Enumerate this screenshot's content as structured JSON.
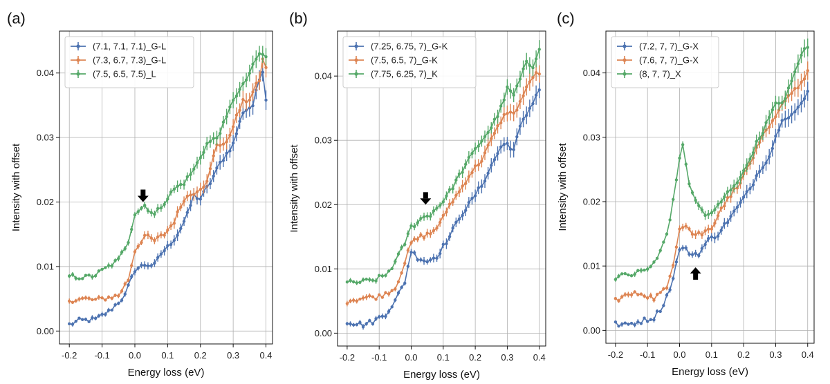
{
  "colors": {
    "blue": "#4c72b0",
    "orange": "#dd8452",
    "green": "#55a868"
  },
  "chart_data": [
    {
      "type": "line",
      "panel_label": "(a)",
      "xlabel": "Energy loss (eV)",
      "ylabel": "Intensity with offset",
      "xlim": [
        -0.23,
        0.42
      ],
      "ylim": [
        -0.002,
        0.0465
      ],
      "xticks": [
        -0.2,
        -0.1,
        0.0,
        0.1,
        0.2,
        0.3,
        0.4
      ],
      "xtick_labels": [
        "-0.2",
        "-0.1",
        "0.0",
        "0.1",
        "0.2",
        "0.3",
        "0.4"
      ],
      "yticks": [
        0.0,
        0.01,
        0.02,
        0.03,
        0.04
      ],
      "ytick_labels": [
        "0.00",
        "0.01",
        "0.02",
        "0.03",
        "0.04"
      ],
      "grid": true,
      "legend_position": "top-left",
      "arrow": {
        "x": 0.025,
        "y": 0.0215,
        "direction": "down"
      },
      "series": [
        {
          "name": "(7.1, 7.1, 7.1)_G-L",
          "color": "#4c72b0",
          "anchors": [
            [
              -0.2,
              0.001
            ],
            [
              -0.17,
              0.0016
            ],
            [
              -0.12,
              0.0018
            ],
            [
              -0.08,
              0.003
            ],
            [
              -0.05,
              0.0045
            ],
            [
              -0.03,
              0.0055
            ],
            [
              0.0,
              0.0095
            ],
            [
              0.03,
              0.0103
            ],
            [
              0.06,
              0.0102
            ],
            [
              0.08,
              0.012
            ],
            [
              0.1,
              0.013
            ],
            [
              0.13,
              0.015
            ],
            [
              0.16,
              0.018
            ],
            [
              0.18,
              0.021
            ],
            [
              0.2,
              0.0205
            ],
            [
              0.23,
              0.023
            ],
            [
              0.26,
              0.026
            ],
            [
              0.3,
              0.029
            ],
            [
              0.33,
              0.034
            ],
            [
              0.36,
              0.035
            ],
            [
              0.38,
              0.039
            ],
            [
              0.39,
              0.0405
            ],
            [
              0.4,
              0.036
            ]
          ]
        },
        {
          "name": "(7.3, 6.7, 7.3)_G-L",
          "color": "#dd8452",
          "anchors": [
            [
              -0.2,
              0.0048
            ],
            [
              -0.15,
              0.005
            ],
            [
              -0.12,
              0.0048
            ],
            [
              -0.08,
              0.0052
            ],
            [
              -0.05,
              0.0055
            ],
            [
              -0.02,
              0.008
            ],
            [
              0.0,
              0.0125
            ],
            [
              0.03,
              0.0148
            ],
            [
              0.06,
              0.014
            ],
            [
              0.09,
              0.015
            ],
            [
              0.12,
              0.017
            ],
            [
              0.15,
              0.0205
            ],
            [
              0.18,
              0.0215
            ],
            [
              0.22,
              0.023
            ],
            [
              0.25,
              0.029
            ],
            [
              0.28,
              0.029
            ],
            [
              0.3,
              0.032
            ],
            [
              0.33,
              0.0355
            ],
            [
              0.35,
              0.036
            ],
            [
              0.38,
              0.039
            ],
            [
              0.39,
              0.042
            ],
            [
              0.4,
              0.041
            ]
          ]
        },
        {
          "name": "(7.5, 6.5, 7.5)_L",
          "color": "#55a868",
          "anchors": [
            [
              -0.2,
              0.0085
            ],
            [
              -0.15,
              0.0083
            ],
            [
              -0.12,
              0.0087
            ],
            [
              -0.08,
              0.01
            ],
            [
              -0.05,
              0.011
            ],
            [
              -0.02,
              0.014
            ],
            [
              0.0,
              0.0182
            ],
            [
              0.03,
              0.0195
            ],
            [
              0.06,
              0.018
            ],
            [
              0.09,
              0.02
            ],
            [
              0.12,
              0.022
            ],
            [
              0.15,
              0.023
            ],
            [
              0.18,
              0.025
            ],
            [
              0.22,
              0.029
            ],
            [
              0.25,
              0.03
            ],
            [
              0.28,
              0.033
            ],
            [
              0.3,
              0.036
            ],
            [
              0.33,
              0.038
            ],
            [
              0.36,
              0.041
            ],
            [
              0.38,
              0.043
            ],
            [
              0.4,
              0.0425
            ]
          ]
        }
      ]
    },
    {
      "type": "line",
      "panel_label": "(b)",
      "xlabel": "Energy loss (eV)",
      "ylabel": "Intensity with offset",
      "xlim": [
        -0.23,
        0.42
      ],
      "ylim": [
        -0.002,
        0.047
      ],
      "xticks": [
        -0.2,
        -0.1,
        0.0,
        0.1,
        0.2,
        0.3,
        0.4
      ],
      "xtick_labels": [
        "-0.2",
        "-0.1",
        "0.0",
        "0.1",
        "0.2",
        "0.3",
        "0.4"
      ],
      "yticks": [
        0.0,
        0.01,
        0.02,
        0.03,
        0.04
      ],
      "ytick_labels": [
        "0.00",
        "0.01",
        "0.02",
        "0.03",
        "0.04"
      ],
      "grid": true,
      "legend_position": "top-left",
      "arrow": {
        "x": 0.045,
        "y": 0.0215,
        "direction": "down"
      },
      "series": [
        {
          "name": "(7.25, 6.75, 7)_G-K",
          "color": "#4c72b0",
          "anchors": [
            [
              -0.2,
              0.0018
            ],
            [
              -0.15,
              0.0013
            ],
            [
              -0.12,
              0.0018
            ],
            [
              -0.08,
              0.003
            ],
            [
              -0.05,
              0.005
            ],
            [
              -0.02,
              0.008
            ],
            [
              0.0,
              0.0128
            ],
            [
              0.02,
              0.0118
            ],
            [
              0.05,
              0.0112
            ],
            [
              0.08,
              0.012
            ],
            [
              0.12,
              0.015
            ],
            [
              0.15,
              0.018
            ],
            [
              0.18,
              0.02
            ],
            [
              0.22,
              0.023
            ],
            [
              0.25,
              0.026
            ],
            [
              0.28,
              0.029
            ],
            [
              0.3,
              0.0295
            ],
            [
              0.32,
              0.0285
            ],
            [
              0.34,
              0.032
            ],
            [
              0.36,
              0.034
            ],
            [
              0.38,
              0.036
            ],
            [
              0.4,
              0.038
            ]
          ]
        },
        {
          "name": "(7.5, 6.5, 7)_G-K",
          "color": "#dd8452",
          "anchors": [
            [
              -0.2,
              0.005
            ],
            [
              -0.15,
              0.0055
            ],
            [
              -0.1,
              0.0057
            ],
            [
              -0.05,
              0.007
            ],
            [
              -0.02,
              0.011
            ],
            [
              0.0,
              0.014
            ],
            [
              0.03,
              0.015
            ],
            [
              0.06,
              0.0155
            ],
            [
              0.09,
              0.017
            ],
            [
              0.12,
              0.02
            ],
            [
              0.15,
              0.022
            ],
            [
              0.18,
              0.0245
            ],
            [
              0.22,
              0.027
            ],
            [
              0.25,
              0.03
            ],
            [
              0.28,
              0.033
            ],
            [
              0.3,
              0.0345
            ],
            [
              0.32,
              0.034
            ],
            [
              0.34,
              0.036
            ],
            [
              0.36,
              0.038
            ],
            [
              0.38,
              0.04
            ],
            [
              0.4,
              0.0405
            ]
          ]
        },
        {
          "name": "(7.75, 6.25, 7)_K",
          "color": "#55a868",
          "anchors": [
            [
              -0.2,
              0.0078
            ],
            [
              -0.15,
              0.008
            ],
            [
              -0.12,
              0.0082
            ],
            [
              -0.08,
              0.009
            ],
            [
              -0.05,
              0.011
            ],
            [
              -0.02,
              0.014
            ],
            [
              0.0,
              0.0165
            ],
            [
              0.03,
              0.0178
            ],
            [
              0.06,
              0.0185
            ],
            [
              0.09,
              0.02
            ],
            [
              0.12,
              0.022
            ],
            [
              0.15,
              0.0245
            ],
            [
              0.18,
              0.027
            ],
            [
              0.22,
              0.03
            ],
            [
              0.25,
              0.032
            ],
            [
              0.28,
              0.035
            ],
            [
              0.3,
              0.038
            ],
            [
              0.32,
              0.037
            ],
            [
              0.34,
              0.0395
            ],
            [
              0.36,
              0.042
            ],
            [
              0.38,
              0.0415
            ],
            [
              0.4,
              0.0445
            ]
          ]
        }
      ]
    },
    {
      "type": "line",
      "panel_label": "(c)",
      "xlabel": "Energy loss (eV)",
      "ylabel": "Intensity with offset",
      "xlim": [
        -0.23,
        0.42
      ],
      "ylim": [
        -0.002,
        0.0465
      ],
      "xticks": [
        -0.2,
        -0.1,
        0.0,
        0.1,
        0.2,
        0.3,
        0.4
      ],
      "xtick_labels": [
        "-0.2",
        "-0.1",
        "0.0",
        "0.1",
        "0.2",
        "0.3",
        "0.4"
      ],
      "yticks": [
        0.0,
        0.01,
        0.02,
        0.03,
        0.04
      ],
      "ytick_labels": [
        "0.00",
        "0.01",
        "0.02",
        "0.03",
        "0.04"
      ],
      "grid": true,
      "legend_position": "top-left",
      "arrow": {
        "x": 0.05,
        "y": 0.0083,
        "direction": "up"
      },
      "series": [
        {
          "name": "(7.2, 7, 7)_G-X",
          "color": "#4c72b0",
          "anchors": [
            [
              -0.2,
              0.001
            ],
            [
              -0.17,
              0.0008
            ],
            [
              -0.13,
              0.0013
            ],
            [
              -0.08,
              0.002
            ],
            [
              -0.05,
              0.004
            ],
            [
              -0.02,
              0.008
            ],
            [
              0.0,
              0.0128
            ],
            [
              0.02,
              0.0125
            ],
            [
              0.04,
              0.0118
            ],
            [
              0.06,
              0.012
            ],
            [
              0.09,
              0.014
            ],
            [
              0.12,
              0.015
            ],
            [
              0.15,
              0.017
            ],
            [
              0.18,
              0.019
            ],
            [
              0.22,
              0.022
            ],
            [
              0.25,
              0.025
            ],
            [
              0.28,
              0.027
            ],
            [
              0.3,
              0.03
            ],
            [
              0.32,
              0.033
            ],
            [
              0.35,
              0.0335
            ],
            [
              0.38,
              0.035
            ],
            [
              0.4,
              0.037
            ]
          ]
        },
        {
          "name": "(7.6, 7, 7)_G-X",
          "color": "#dd8452",
          "anchors": [
            [
              -0.2,
              0.0048
            ],
            [
              -0.16,
              0.0055
            ],
            [
              -0.12,
              0.0058
            ],
            [
              -0.08,
              0.005
            ],
            [
              -0.04,
              0.0065
            ],
            [
              -0.02,
              0.0105
            ],
            [
              0.0,
              0.016
            ],
            [
              0.02,
              0.0165
            ],
            [
              0.04,
              0.015
            ],
            [
              0.07,
              0.015
            ],
            [
              0.1,
              0.016
            ],
            [
              0.13,
              0.019
            ],
            [
              0.16,
              0.021
            ],
            [
              0.2,
              0.024
            ],
            [
              0.23,
              0.027
            ],
            [
              0.26,
              0.03
            ],
            [
              0.3,
              0.033
            ],
            [
              0.33,
              0.036
            ],
            [
              0.36,
              0.0375
            ],
            [
              0.38,
              0.0385
            ],
            [
              0.4,
              0.04
            ]
          ]
        },
        {
          "name": "(8, 7, 7)_X",
          "color": "#55a868",
          "anchors": [
            [
              -0.2,
              0.0083
            ],
            [
              -0.15,
              0.0087
            ],
            [
              -0.1,
              0.0095
            ],
            [
              -0.07,
              0.011
            ],
            [
              -0.04,
              0.015
            ],
            [
              -0.02,
              0.02
            ],
            [
              0.0,
              0.027
            ],
            [
              0.01,
              0.0285
            ],
            [
              0.03,
              0.023
            ],
            [
              0.05,
              0.02
            ],
            [
              0.08,
              0.018
            ],
            [
              0.1,
              0.018
            ],
            [
              0.13,
              0.02
            ],
            [
              0.16,
              0.022
            ],
            [
              0.2,
              0.0245
            ],
            [
              0.23,
              0.028
            ],
            [
              0.26,
              0.031
            ],
            [
              0.3,
              0.035
            ],
            [
              0.33,
              0.036
            ],
            [
              0.36,
              0.04
            ],
            [
              0.38,
              0.043
            ],
            [
              0.4,
              0.044
            ]
          ]
        }
      ]
    }
  ]
}
